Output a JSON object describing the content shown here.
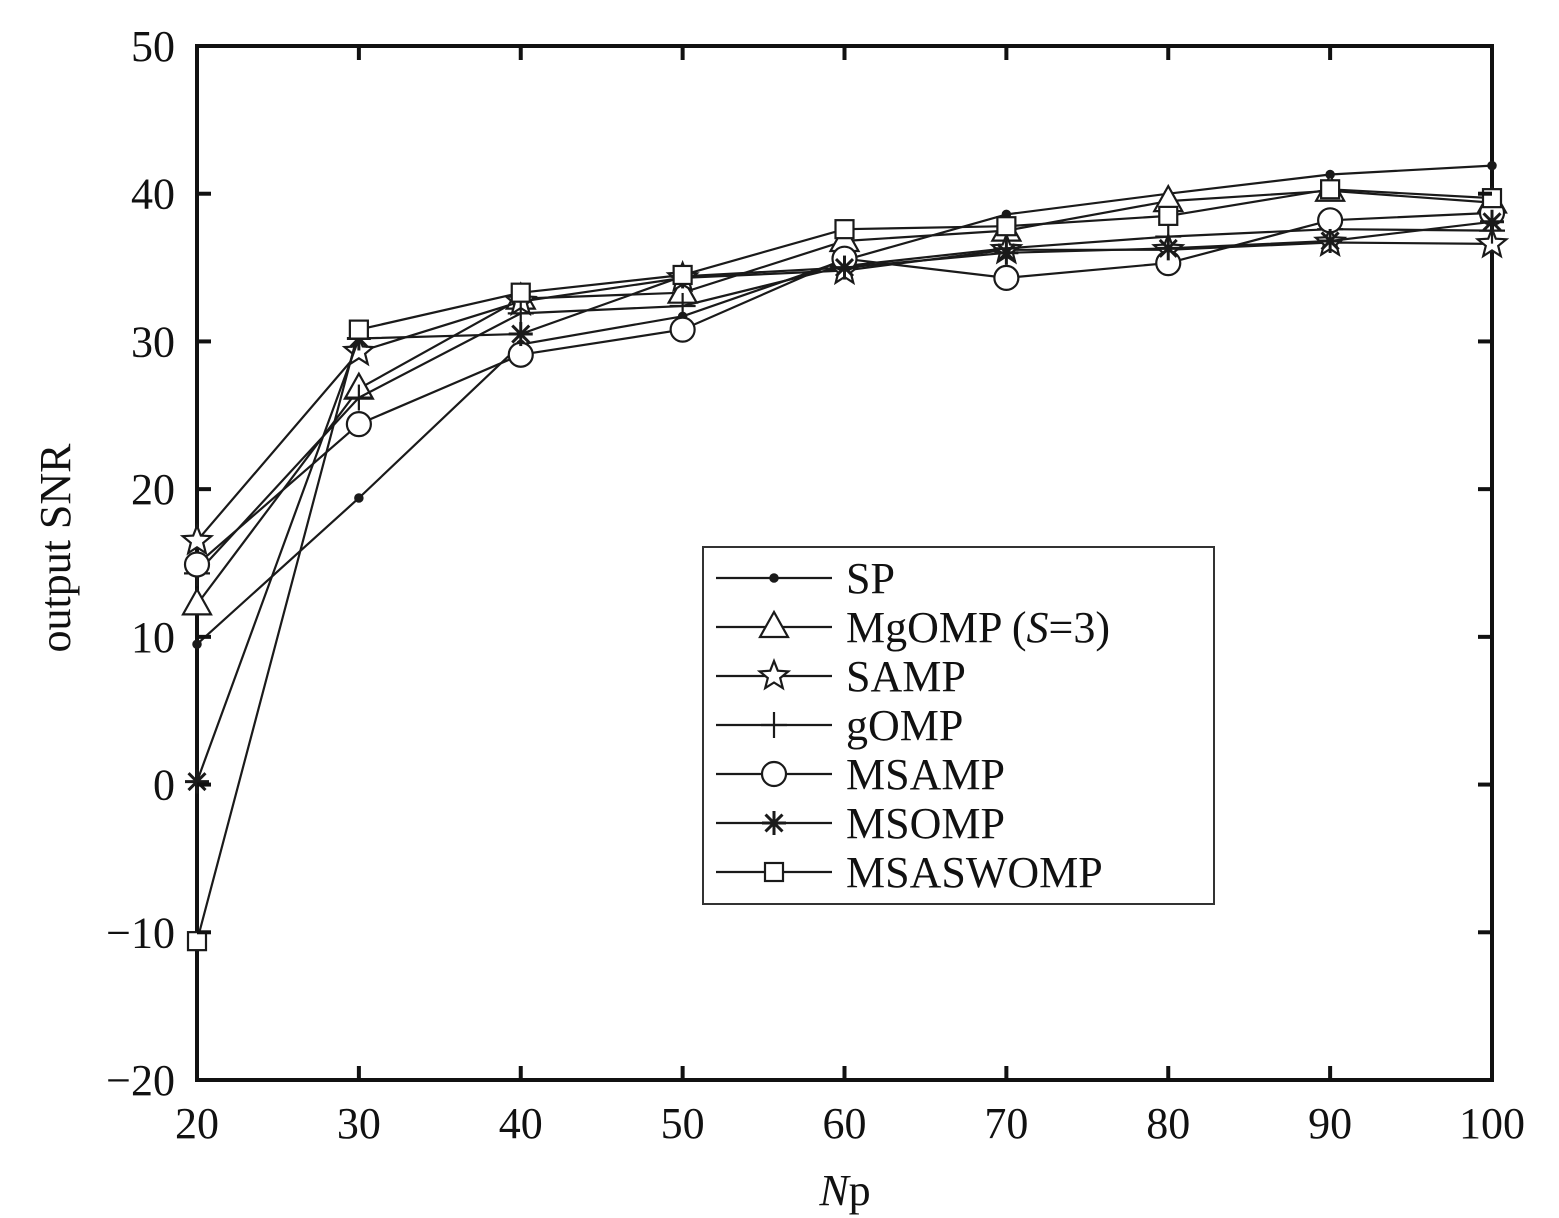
{
  "chart_data": {
    "type": "line",
    "title": "",
    "xlabel": "Np",
    "xlabel_parts": {
      "italic": "N",
      "rest": "p"
    },
    "ylabel": "output SNR",
    "xlim": [
      20,
      100
    ],
    "ylim": [
      -20,
      50
    ],
    "xticks": [
      "20",
      "30",
      "40",
      "50",
      "60",
      "70",
      "80",
      "90",
      "100"
    ],
    "yticks": [
      "−20",
      "−10",
      "0",
      "10",
      "20",
      "30",
      "40",
      "50"
    ],
    "x": [
      20,
      30,
      40,
      50,
      60,
      70,
      80,
      90,
      100
    ],
    "grid": false,
    "legend_position": "center-right",
    "series": [
      {
        "name": "SP",
        "marker": "dot",
        "values": [
          9.5,
          19.4,
          29.8,
          31.7,
          35.5,
          38.6,
          40.0,
          41.3,
          41.9
        ]
      },
      {
        "name": "MgOMP (S=3)",
        "marker": "triangle",
        "values": [
          12.2,
          26.8,
          32.9,
          33.3,
          36.8,
          37.5,
          39.5,
          40.2,
          39.4
        ]
      },
      {
        "name": "SAMP",
        "marker": "star",
        "values": [
          16.5,
          29.3,
          32.7,
          34.3,
          34.8,
          36.2,
          36.2,
          36.7,
          36.6
        ]
      },
      {
        "name": "gOMP",
        "marker": "plus",
        "values": [
          14.3,
          26.2,
          31.9,
          32.4,
          35.1,
          36.3,
          37.1,
          37.6,
          37.5
        ]
      },
      {
        "name": "MSAMP",
        "marker": "circle",
        "values": [
          14.9,
          24.4,
          29.1,
          30.8,
          35.6,
          34.3,
          35.3,
          38.2,
          38.7
        ]
      },
      {
        "name": "MSOMP",
        "marker": "asterisk",
        "values": [
          0.2,
          30.2,
          30.5,
          34.4,
          35.0,
          36.0,
          36.3,
          36.8,
          38.1
        ]
      },
      {
        "name": "MSASWOMP",
        "marker": "square",
        "values": [
          -10.6,
          30.8,
          33.3,
          34.5,
          37.6,
          37.8,
          38.5,
          40.3,
          39.7
        ]
      }
    ],
    "legend": {
      "entries": [
        {
          "series": "SP",
          "label": "SP"
        },
        {
          "series": "MgOMP (S=3)",
          "label_prefix": "MgOMP (",
          "label_italic": "S",
          "label_suffix": "=3)"
        },
        {
          "series": "SAMP",
          "label": "SAMP"
        },
        {
          "series": "gOMP",
          "label": "gOMP"
        },
        {
          "series": "MSAMP",
          "label": "MSAMP"
        },
        {
          "series": "MSOMP",
          "label": "MSOMP"
        },
        {
          "series": "MSASWOMP",
          "label": "MSASWOMP"
        }
      ]
    }
  },
  "colors": {
    "line": "#1a1a1a",
    "axis": "#111111",
    "legend_border": "#333333",
    "background": "#ffffff"
  }
}
